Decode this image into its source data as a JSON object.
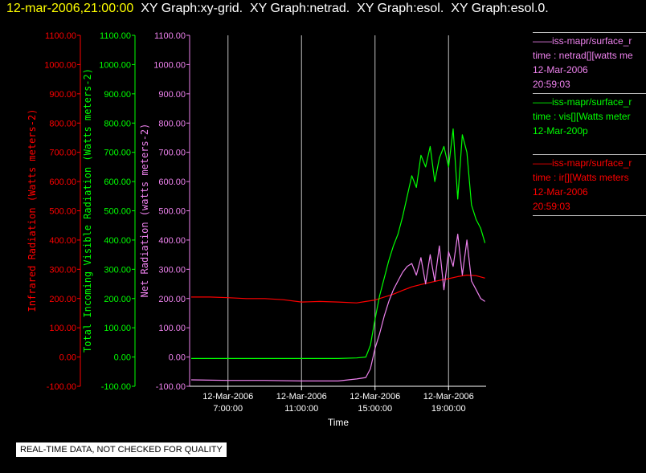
{
  "title": {
    "timestamp": "12-mar-2006,21:00:00",
    "graphs": "XY Graph:xy-grid.  XY Graph:netrad.  XY Graph:esol.  XY Graph:esol.0."
  },
  "colors": {
    "background": "#000000",
    "infrared": "#ff0000",
    "visible": "#00ff00",
    "net": "#ee82ee",
    "grid": "#c0c0c0",
    "title_timestamp": "#ffff00"
  },
  "legend": [
    {
      "lines": [
        "——iss-mapr/surface_r",
        "time : netrad[][watts me",
        "12-Mar-2006",
        "20:59:03"
      ],
      "color": "#ee82ee"
    },
    {
      "lines": [
        "——iss-mapr/surface_r",
        "time : vis[][Watts meter",
        "12-Mar-200p"
      ],
      "color": "#00ff00"
    },
    {
      "lines": [
        "——iss-mapr/surface_r",
        "time : ir[][Watts meters",
        "12-Mar-2006",
        "20:59:03"
      ],
      "color": "#ff0000"
    }
  ],
  "disclaimer": "REAL-TIME DATA, NOT CHECKED FOR QUALITY",
  "chart_data": {
    "type": "line",
    "xlabel": "Time",
    "x_ticks": [
      {
        "date": "12-Mar-2006",
        "time": "7:00:00",
        "hour": 7
      },
      {
        "date": "12-Mar-2006",
        "time": "11:00:00",
        "hour": 11
      },
      {
        "date": "12-Mar-2006",
        "time": "15:00:00",
        "hour": 15
      },
      {
        "date": "12-Mar-2006",
        "time": "19:00:00",
        "hour": 19
      }
    ],
    "xlim": [
      "2006-03-12 05:00",
      "2006-03-12 21:00"
    ],
    "ylim": [
      -100,
      1100
    ],
    "y_ticks": [
      "-100.00",
      "0.00",
      "100.00",
      "200.00",
      "300.00",
      "400.00",
      "500.00",
      "600.00",
      "700.00",
      "800.00",
      "900.00",
      "1000.00",
      "1100.00"
    ],
    "axes": [
      {
        "label": "Infrared Radiation (Watts meters-2)",
        "color": "#ff0000"
      },
      {
        "label": "Total Incoming Visible Radiation (Watts meters-2)",
        "color": "#00ff00"
      },
      {
        "label": "Net Radiation (watts meters-2)",
        "color": "#ee82ee"
      }
    ],
    "grid": "vertical",
    "series": [
      {
        "name": "ir",
        "color": "#ff0000",
        "x": [
          "05:00",
          "06:00",
          "07:00",
          "08:00",
          "09:00",
          "10:00",
          "11:00",
          "12:00",
          "13:00",
          "14:00",
          "14:30",
          "15:00",
          "15:30",
          "16:00",
          "16:30",
          "17:00",
          "17:30",
          "18:00",
          "18:30",
          "19:00",
          "19:30",
          "20:00",
          "20:30",
          "20:59"
        ],
        "y": [
          205,
          205,
          203,
          200,
          200,
          196,
          188,
          190,
          188,
          185,
          190,
          195,
          205,
          215,
          228,
          240,
          248,
          255,
          262,
          268,
          275,
          280,
          278,
          270
        ]
      },
      {
        "name": "vis",
        "color": "#00ff00",
        "x": [
          "05:00",
          "07:00",
          "09:00",
          "11:00",
          "13:00",
          "14:00",
          "14:30",
          "14:45",
          "15:00",
          "15:15",
          "15:30",
          "15:45",
          "16:00",
          "16:15",
          "16:30",
          "16:45",
          "17:00",
          "17:15",
          "17:30",
          "17:45",
          "18:00",
          "18:15",
          "18:30",
          "18:45",
          "19:00",
          "19:15",
          "19:30",
          "19:45",
          "20:00",
          "20:15",
          "20:30",
          "20:45",
          "20:59"
        ],
        "y": [
          -5,
          -5,
          -5,
          -5,
          -5,
          -3,
          0,
          40,
          130,
          210,
          270,
          330,
          380,
          420,
          480,
          550,
          620,
          580,
          690,
          650,
          720,
          600,
          680,
          720,
          650,
          780,
          540,
          760,
          700,
          520,
          470,
          440,
          390
        ]
      },
      {
        "name": "netrad",
        "color": "#ee82ee",
        "x": [
          "05:00",
          "07:00",
          "09:00",
          "11:00",
          "13:00",
          "14:00",
          "14:30",
          "14:45",
          "15:00",
          "15:15",
          "15:30",
          "15:45",
          "16:00",
          "16:15",
          "16:30",
          "16:45",
          "17:00",
          "17:15",
          "17:30",
          "17:45",
          "18:00",
          "18:15",
          "18:30",
          "18:45",
          "19:00",
          "19:15",
          "19:30",
          "19:45",
          "20:00",
          "20:15",
          "20:30",
          "20:45",
          "20:59"
        ],
        "y": [
          -78,
          -80,
          -80,
          -82,
          -82,
          -75,
          -70,
          -40,
          30,
          80,
          140,
          190,
          230,
          260,
          290,
          310,
          320,
          280,
          340,
          250,
          350,
          260,
          380,
          230,
          360,
          310,
          420,
          280,
          400,
          260,
          230,
          200,
          190
        ]
      }
    ]
  }
}
